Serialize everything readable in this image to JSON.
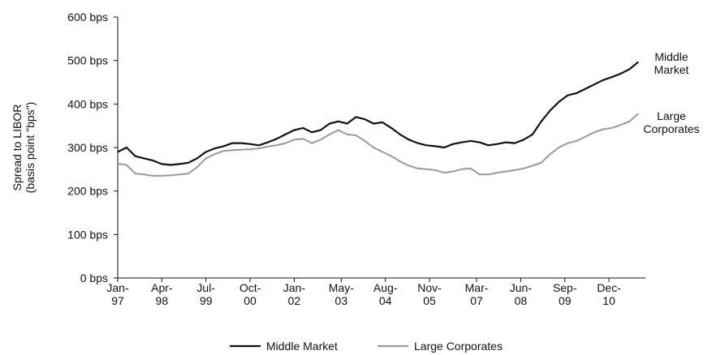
{
  "chart_data": {
    "type": "line",
    "ylabel": "Spread to LIBOR\n(basis point \"bps\")",
    "x": [
      1997,
      1997.25,
      1997.5,
      1997.75,
      1998,
      1998.25,
      1998.5,
      1998.75,
      1999,
      1999.25,
      1999.5,
      1999.75,
      2000,
      2000.25,
      2000.5,
      2000.75,
      2001,
      2001.25,
      2001.5,
      2001.75,
      2002,
      2002.25,
      2002.5,
      2002.75,
      2003,
      2003.25,
      2003.5,
      2003.75,
      2004,
      2004.25,
      2004.5,
      2004.75,
      2005,
      2005.25,
      2005.5,
      2005.75,
      2006,
      2006.25,
      2006.5,
      2006.75,
      2007,
      2007.25,
      2007.5,
      2007.75,
      2008,
      2008.25,
      2008.5,
      2008.75,
      2009,
      2009.25,
      2009.5,
      2009.75,
      2010,
      2010.25,
      2010.5,
      2010.75,
      2011,
      2011.25,
      2011.5,
      2011.75
    ],
    "series": [
      {
        "name": "Middle Market",
        "color": "#111111",
        "values": [
          290,
          300,
          280,
          275,
          270,
          262,
          260,
          262,
          265,
          275,
          290,
          298,
          303,
          310,
          310,
          308,
          305,
          312,
          320,
          330,
          340,
          345,
          335,
          340,
          355,
          360,
          355,
          370,
          365,
          355,
          358,
          345,
          330,
          318,
          310,
          305,
          303,
          300,
          308,
          312,
          315,
          312,
          305,
          308,
          312,
          310,
          318,
          330,
          360,
          385,
          405,
          420,
          425,
          435,
          445,
          455,
          462,
          470,
          480,
          497
        ]
      },
      {
        "name": "Large Corporates",
        "color": "#999999",
        "values": [
          263,
          260,
          240,
          238,
          235,
          235,
          236,
          238,
          240,
          255,
          275,
          285,
          292,
          294,
          295,
          296,
          298,
          302,
          305,
          310,
          318,
          320,
          310,
          318,
          330,
          340,
          330,
          328,
          315,
          300,
          290,
          280,
          268,
          258,
          252,
          250,
          248,
          242,
          245,
          250,
          252,
          238,
          238,
          242,
          245,
          248,
          252,
          258,
          265,
          285,
          300,
          310,
          315,
          325,
          335,
          342,
          345,
          352,
          360,
          378
        ]
      }
    ],
    "annotations": [
      "Middle\nMarket",
      "Large\nCorporates"
    ],
    "xlim": [
      1997,
      2011.95
    ],
    "xticks": [
      {
        "value": 1997,
        "label": "Jan-\n97"
      },
      {
        "value": 1998.25,
        "label": "Apr-\n98"
      },
      {
        "value": 1999.5,
        "label": "Jul-\n99"
      },
      {
        "value": 2000.75,
        "label": "Oct-\n00"
      },
      {
        "value": 2002,
        "label": "Jan-\n02"
      },
      {
        "value": 2003.333,
        "label": "May-\n03"
      },
      {
        "value": 2004.583,
        "label": "Aug-\n04"
      },
      {
        "value": 2005.833,
        "label": "Nov-\n05"
      },
      {
        "value": 2007.167,
        "label": "Mar-\n07"
      },
      {
        "value": 2008.417,
        "label": "Jun-\n08"
      },
      {
        "value": 2009.667,
        "label": "Sep-\n09"
      },
      {
        "value": 2010.917,
        "label": "Dec-\n10"
      }
    ],
    "ylim": [
      0,
      600
    ],
    "yticks": [
      {
        "value": 0,
        "label": "0 bps"
      },
      {
        "value": 100,
        "label": "100 bps"
      },
      {
        "value": 200,
        "label": "200 bps"
      },
      {
        "value": 300,
        "label": "300 bps"
      },
      {
        "value": 400,
        "label": "400 bps"
      },
      {
        "value": 500,
        "label": "500 bps"
      },
      {
        "value": 600,
        "label": "600 bps"
      }
    ],
    "grid": false,
    "legend": "bottom"
  }
}
